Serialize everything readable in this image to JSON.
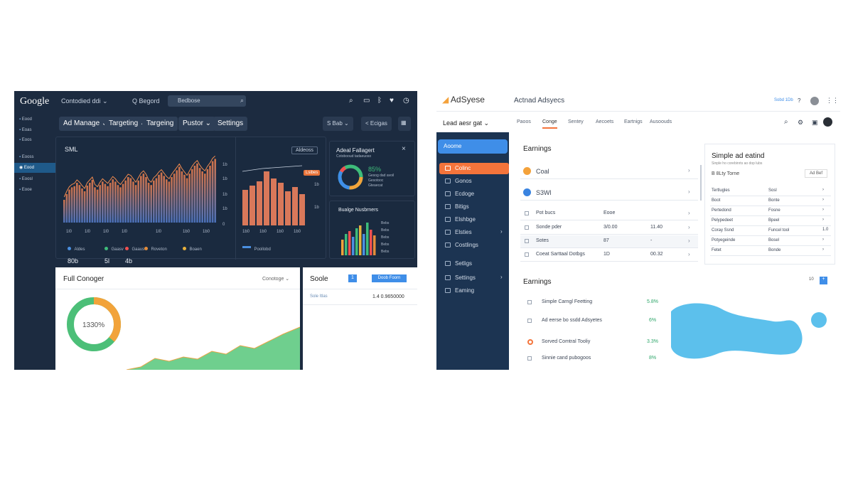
{
  "left": {
    "logo": "Google",
    "account": "Contodied ddi ⌄",
    "search_label": "Q Begord",
    "search_placeholder": "Bedbose",
    "sidebar_items": [
      "Eood",
      "Eoas",
      "Eoos",
      "Eooss",
      "Eood",
      "Eoosl",
      "Eooe"
    ],
    "tabs": [
      "Ad Manage ⌄",
      "Targeting ⌄",
      "Targeing",
      "Pustor ⌄",
      "Settings"
    ],
    "tab_buttons": [
      "S Bab ⌄",
      "< Ecigas"
    ],
    "main_card": {
      "title": "SML",
      "button": "Aldeoss",
      "y_ticks": [
        "1b",
        "1b",
        "1b",
        "1b",
        "1b",
        "0"
      ],
      "x_ticks": [
        "1l0",
        "1l0",
        "1l0",
        "1l0",
        "1l0",
        "1b0",
        "1b0"
      ]
    },
    "legend": [
      {
        "label": "Aldes",
        "value": "80b",
        "color": "#4a8fe0"
      },
      {
        "label": "Gaasv",
        "value": "5l",
        "color": "#3ebc7a"
      },
      {
        "label": "Gaaus",
        "value": "4b",
        "color": "#f25050"
      },
      {
        "label": "Roveton",
        "value": "",
        "color": "#e58d3a"
      },
      {
        "label": "Boaen",
        "value": "",
        "color": "#e8b13c"
      }
    ],
    "mid_chart": {
      "label": "Lsibes",
      "y_ticks": [
        "1b",
        "1b",
        "1b"
      ],
      "x_ticks": [
        "1b0",
        "1b0",
        "1b0",
        "1b0",
        "1b0"
      ],
      "legend": "Poollobd"
    },
    "donut_card": {
      "title": "Adeal Fallagert",
      "subtitle": "Cotobooud tadaeuoso",
      "close": "×",
      "percent": "85%",
      "lines": [
        "Gesog dad avoil",
        "Gesotooc",
        "Gteaecat"
      ]
    },
    "bar_card": {
      "title": "Bualge Nusbrners",
      "labels": [
        "Bebs",
        "Bebs",
        "Bebs",
        "Bebs",
        "Bebs"
      ]
    },
    "bottom_card": {
      "title": "Full Conoger",
      "dropdown": "Conotoge ⌄",
      "percent": "1330%",
      "side_title": "Soole",
      "page_num": "1",
      "side_button": "Doob Foorn",
      "row_label": "Sole Itlas",
      "row_value": "1.4 0.9650000"
    }
  },
  "right": {
    "logo": "AdSyese",
    "title": "Actnad Adsyecs",
    "top_right": "Sobd 1Db",
    "account_select": "Lead aesr gat ⌄",
    "tabs": [
      "Paoos",
      "Conge",
      "Sentey",
      "Aecoets",
      "Eartnigs",
      "Ausoouds"
    ],
    "sidebar_items": [
      "Aoome",
      "Colinc",
      "Gonos",
      "Ecdoge",
      "Bitigs",
      "Elshbge",
      "Elsties",
      "Costlings",
      "Setligs",
      "Settings",
      "Eaming"
    ],
    "earnings": {
      "title": "Earnings",
      "items": [
        {
          "label": "Coal",
          "color": "#f4a23b"
        },
        {
          "label": "S3Wl",
          "color": "#3a84e0"
        }
      ],
      "rows": [
        {
          "label": "Pot bucs",
          "a": "Eooe",
          "b": ""
        },
        {
          "label": "Sonde pder",
          "a": "3/0.00",
          "b": "11.40"
        },
        {
          "label": "Sotes",
          "a": "87",
          "b": "-"
        },
        {
          "label": "Coeat Sarttaal Dotbgs",
          "a": "1D",
          "b": "00.32"
        }
      ]
    },
    "side_card": {
      "title": "Simple ad eatind",
      "subtitle": "Sinple ho corebinrts ao dop lubs",
      "sub2": "B 8Lty Torne",
      "button": "Ad Bef",
      "rows": [
        {
          "a": "Tertlugles",
          "b": "Sosl"
        },
        {
          "a": "Boot",
          "b": "Bonte"
        },
        {
          "a": "Pertedond",
          "b": "Fosne"
        },
        {
          "a": "Pelypedeet",
          "b": "Bpeel"
        },
        {
          "a": "Coray Ssnd",
          "b": "Funcel tool",
          "c": "1.0"
        },
        {
          "a": "Potyegeinde",
          "b": "Bosel"
        },
        {
          "a": "Fetet",
          "b": "Bonde"
        }
      ]
    },
    "earnings2": {
      "title": "Earnings",
      "pager": "10",
      "rows": [
        {
          "label": "Simple Carngl Feetting",
          "value": "5.8%"
        },
        {
          "label": "Ad eerse bo ssdd Adsyetes",
          "value": "6%"
        },
        {
          "label": "Sorved Comtral Tooliy",
          "value": "3.3%"
        },
        {
          "label": "Sinnie cand pubogoos",
          "value": "8%"
        }
      ]
    }
  },
  "colors": {
    "left_bg": "#1c2b40",
    "right_sidebar": "#1c3452",
    "accent_orange": "#f4743b",
    "accent_blue": "#3f8ee8",
    "area_blue": "#5cc0ec",
    "green": "#4cbf78"
  }
}
